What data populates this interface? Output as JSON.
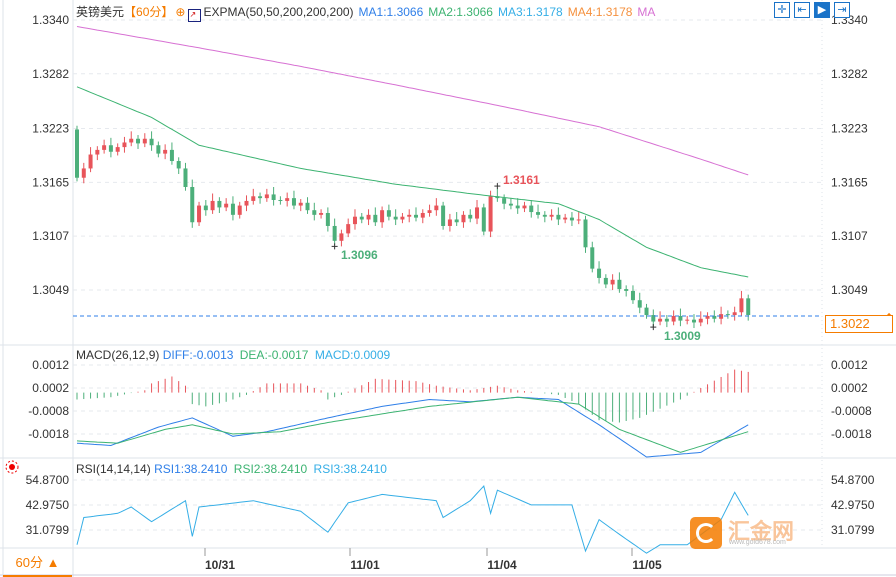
{
  "header": {
    "symbol": "英镑美元",
    "period_tag": "【60分】",
    "indicator": "EXPMA(50,50,200,200,200)",
    "ma1": "MA1:1.3066",
    "ma2": "MA2:1.3066",
    "ma3": "MA3:1.3178",
    "ma4": "MA4:1.3178",
    "ma5": "MA",
    "toolbar": [
      {
        "name": "crosshair",
        "glyph": "✛"
      },
      {
        "name": "fit",
        "glyph": "⇤"
      },
      {
        "name": "play",
        "glyph": "▶"
      },
      {
        "name": "exit",
        "glyph": "⇥"
      }
    ]
  },
  "colors": {
    "up": "#e8545a",
    "down": "#4caf7a",
    "ma_green": "#3cb371",
    "ma_pink": "#d771d3",
    "diff": "#2f7fe8",
    "dea": "#3cb371",
    "rsi": "#35aee6",
    "accent": "#f57c00"
  },
  "price_axis": [
    "1.3340",
    "1.3282",
    "1.3223",
    "1.3165",
    "1.3107",
    "1.3049"
  ],
  "current_price": "1.3022",
  "annotations": {
    "high": "1.3161",
    "low1": "1.3096",
    "low2": "1.3009"
  },
  "macd": {
    "title": "MACD(26,12,9)",
    "diff": "DIFF:-0.0013",
    "dea": "DEA:-0.0017",
    "macd": "MACD:0.0009",
    "axis": [
      "0.0012",
      "0.0002",
      "-0.0008",
      "-0.0018"
    ]
  },
  "rsi": {
    "title": "RSI(14,14,14)",
    "rsi1": "RSI1:38.2410",
    "rsi2": "RSI2:38.2410",
    "rsi3": "RSI3:38.2410",
    "axis": [
      "54.8700",
      "42.9750",
      "31.0799"
    ]
  },
  "dates": [
    "10/31",
    "11/01",
    "11/04",
    "11/05"
  ],
  "period_button": "60分 ▲",
  "watermark": {
    "name": "汇金网",
    "url": "www.gold678.com"
  },
  "chart_data": {
    "type": "candlestick",
    "first_open": 1.3222,
    "closes": [
      1.317,
      1.318,
      1.3195,
      1.32,
      1.3205,
      1.3198,
      1.3203,
      1.3208,
      1.3212,
      1.3207,
      1.3212,
      1.3205,
      1.3196,
      1.32,
      1.3188,
      1.318,
      1.316,
      1.3122,
      1.314,
      1.3135,
      1.3145,
      1.3138,
      1.3142,
      1.313,
      1.314,
      1.3145,
      1.315,
      1.3148,
      1.3152,
      1.3146,
      1.3145,
      1.3148,
      1.314,
      1.3143,
      1.3135,
      1.313,
      1.3132,
      1.3118,
      1.3102,
      1.311,
      1.312,
      1.3128,
      1.3125,
      1.313,
      1.3122,
      1.3135,
      1.3128,
      1.3125,
      1.3128,
      1.313,
      1.3127,
      1.3132,
      1.3135,
      1.314,
      1.3118,
      1.3125,
      1.3122,
      1.313,
      1.3126,
      1.3138,
      1.3112,
      1.315,
      1.3148,
      1.3142,
      1.314,
      1.3137,
      1.314,
      1.3133,
      1.313,
      1.3128,
      1.313,
      1.3125,
      1.3127,
      1.3124,
      1.3125,
      1.3095,
      1.3072,
      1.3062,
      1.3055,
      1.306,
      1.305,
      1.3048,
      1.3038,
      1.303,
      1.3022,
      1.3015,
      1.3018,
      1.3015,
      1.3021,
      1.3016,
      1.3017,
      1.3014,
      1.3018,
      1.3021,
      1.3018,
      1.3023,
      1.3022,
      1.3025,
      1.304,
      1.3022
    ],
    "ema_green": [
      [
        0,
        1.3268
      ],
      [
        11,
        1.3235
      ],
      [
        18,
        1.3205
      ],
      [
        33,
        1.318
      ],
      [
        47,
        1.3163
      ],
      [
        59,
        1.3152
      ],
      [
        71,
        1.3142
      ],
      [
        77,
        1.3125
      ],
      [
        84,
        1.3095
      ],
      [
        92,
        1.3073
      ],
      [
        99,
        1.3063
      ]
    ],
    "ema_pink": [
      [
        0,
        1.3333
      ],
      [
        18,
        1.331
      ],
      [
        33,
        1.329
      ],
      [
        47,
        1.327
      ],
      [
        62,
        1.3248
      ],
      [
        77,
        1.3225
      ],
      [
        92,
        1.319
      ],
      [
        99,
        1.3173
      ]
    ],
    "macd_hist": [
      [
        0,
        -0.0003
      ],
      [
        5,
        -0.0002
      ],
      [
        10,
        0.0001
      ],
      [
        14,
        0.0007
      ],
      [
        11,
        0.0004
      ],
      [
        15,
        0.0005
      ],
      [
        16,
        0.0003
      ],
      [
        17,
        -0.0005
      ],
      [
        19,
        -0.0006
      ],
      [
        22,
        -0.0004
      ],
      [
        25,
        -0.0001
      ],
      [
        28,
        0.0004
      ],
      [
        33,
        0.0004
      ],
      [
        36,
        0.0001
      ],
      [
        37,
        -0.0003
      ],
      [
        39,
        -0.0001
      ],
      [
        44,
        0.0006
      ],
      [
        50,
        0.0005
      ],
      [
        53,
        0.0003
      ],
      [
        58,
        0.0001
      ],
      [
        62,
        0.0003
      ],
      [
        65,
        0.0001
      ],
      [
        71,
        -0.0001
      ],
      [
        74,
        -0.0005
      ],
      [
        77,
        -0.0012
      ],
      [
        80,
        -0.0013
      ],
      [
        83,
        -0.0011
      ],
      [
        89,
        -0.0003
      ],
      [
        92,
        0.0002
      ],
      [
        97,
        0.001
      ],
      [
        99,
        0.0009
      ]
    ],
    "diff": [
      [
        0,
        -0.0022
      ],
      [
        5,
        -0.0023
      ],
      [
        12,
        -0.0015
      ],
      [
        17,
        -0.0011
      ],
      [
        20,
        -0.0015
      ],
      [
        23,
        -0.0019
      ],
      [
        28,
        -0.0017
      ],
      [
        37,
        -0.0011
      ],
      [
        45,
        -0.0006
      ],
      [
        52,
        -0.0003
      ],
      [
        58,
        -0.0004
      ],
      [
        65,
        -0.0002
      ],
      [
        71,
        -0.0003
      ],
      [
        77,
        -0.0014
      ],
      [
        84,
        -0.0028
      ],
      [
        92,
        -0.0026
      ],
      [
        99,
        -0.0014
      ]
    ],
    "dea": [
      [
        0,
        -0.0021
      ],
      [
        6,
        -0.0022
      ],
      [
        13,
        -0.0016
      ],
      [
        17,
        -0.0014
      ],
      [
        23,
        -0.0018
      ],
      [
        30,
        -0.0017
      ],
      [
        37,
        -0.0013
      ],
      [
        52,
        -0.0006
      ],
      [
        65,
        -0.0002
      ],
      [
        74,
        -0.0005
      ],
      [
        80,
        -0.0016
      ],
      [
        89,
        -0.0026
      ],
      [
        99,
        -0.0017
      ]
    ],
    "rsi": [
      [
        0,
        24
      ],
      [
        1,
        37
      ],
      [
        6,
        39
      ],
      [
        8,
        42
      ],
      [
        11,
        35
      ],
      [
        16,
        45
      ],
      [
        17,
        28
      ],
      [
        18,
        42
      ],
      [
        26,
        45
      ],
      [
        33,
        40
      ],
      [
        37,
        30
      ],
      [
        40,
        44
      ],
      [
        45,
        48
      ],
      [
        53,
        45
      ],
      [
        54,
        37
      ],
      [
        58,
        45
      ],
      [
        60,
        52
      ],
      [
        61,
        39
      ],
      [
        62,
        50
      ],
      [
        67,
        43
      ],
      [
        73,
        43
      ],
      [
        75,
        21
      ],
      [
        77,
        36
      ],
      [
        80,
        29
      ],
      [
        84,
        20
      ],
      [
        86,
        24
      ],
      [
        90,
        24
      ],
      [
        95,
        36
      ],
      [
        97,
        49
      ],
      [
        99,
        38
      ]
    ],
    "ylim": [
      1.3,
      1.334
    ]
  }
}
